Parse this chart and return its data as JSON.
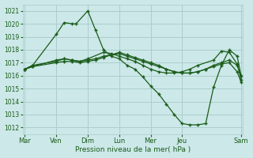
{
  "background_color": "#cce8e8",
  "grid_color": "#aacccc",
  "line_color": "#1a5c1a",
  "xlabel": "Pression niveau de la mer( hPa )",
  "ylim": [
    1011.5,
    1021.5
  ],
  "yticks": [
    1012,
    1013,
    1014,
    1015,
    1016,
    1017,
    1018,
    1019,
    1020,
    1021
  ],
  "day_tick_positions": [
    0,
    16,
    32,
    48,
    64,
    80,
    110
  ],
  "day_tick_labels": [
    "Mar",
    "Ven",
    "Dim",
    "Lun",
    "Mer",
    "Jeu",
    "Sam"
  ],
  "series": [
    {
      "x": [
        0,
        4,
        16,
        20,
        24,
        26,
        32,
        36,
        40,
        44,
        48,
        52,
        56,
        60,
        64,
        68,
        72,
        76,
        80,
        84,
        88,
        92,
        96,
        100,
        104,
        108,
        110
      ],
      "y": [
        1016.5,
        1016.8,
        1019.2,
        1020.1,
        1020.0,
        1020.0,
        1021.0,
        1019.5,
        1018.0,
        1017.5,
        1017.3,
        1016.8,
        1016.5,
        1015.9,
        1015.2,
        1014.6,
        1013.8,
        1013.0,
        1012.3,
        1012.2,
        1012.2,
        1012.3,
        1015.1,
        1016.8,
        1018.0,
        1017.5,
        1016.0
      ]
    },
    {
      "x": [
        0,
        4,
        16,
        20,
        24,
        28,
        32,
        36,
        40,
        44,
        48,
        52,
        56,
        60,
        64,
        68,
        72,
        76,
        80,
        84,
        88,
        92,
        96,
        100,
        104,
        108,
        110
      ],
      "y": [
        1016.5,
        1016.7,
        1017.2,
        1017.3,
        1017.2,
        1017.1,
        1017.2,
        1017.3,
        1017.5,
        1017.6,
        1017.7,
        1017.5,
        1017.3,
        1017.1,
        1016.9,
        1016.7,
        1016.5,
        1016.3,
        1016.2,
        1016.2,
        1016.3,
        1016.5,
        1016.7,
        1016.9,
        1017.0,
        1016.3,
        1015.5
      ]
    },
    {
      "x": [
        0,
        4,
        16,
        20,
        24,
        28,
        32,
        36,
        40,
        44,
        48,
        52,
        56,
        60,
        64,
        68,
        72,
        76,
        80,
        84,
        88,
        92,
        96,
        100,
        104,
        108,
        110
      ],
      "y": [
        1016.5,
        1016.7,
        1017.0,
        1017.1,
        1017.1,
        1017.0,
        1017.1,
        1017.2,
        1017.4,
        1017.6,
        1017.8,
        1017.6,
        1017.4,
        1017.2,
        1017.0,
        1016.8,
        1016.5,
        1016.3,
        1016.2,
        1016.2,
        1016.3,
        1016.5,
        1016.8,
        1017.0,
        1017.2,
        1016.8,
        1016.0
      ]
    },
    {
      "x": [
        0,
        4,
        16,
        20,
        24,
        28,
        32,
        40,
        44,
        48,
        52,
        56,
        60,
        64,
        68,
        72,
        76,
        80,
        84,
        88,
        96,
        100,
        104,
        108,
        110
      ],
      "y": [
        1016.5,
        1016.8,
        1017.1,
        1017.3,
        1017.2,
        1017.1,
        1017.3,
        1017.8,
        1017.7,
        1017.5,
        1017.3,
        1017.1,
        1016.8,
        1016.5,
        1016.3,
        1016.2,
        1016.2,
        1016.3,
        1016.5,
        1016.8,
        1017.2,
        1017.9,
        1017.8,
        1016.9,
        1015.7
      ]
    }
  ]
}
